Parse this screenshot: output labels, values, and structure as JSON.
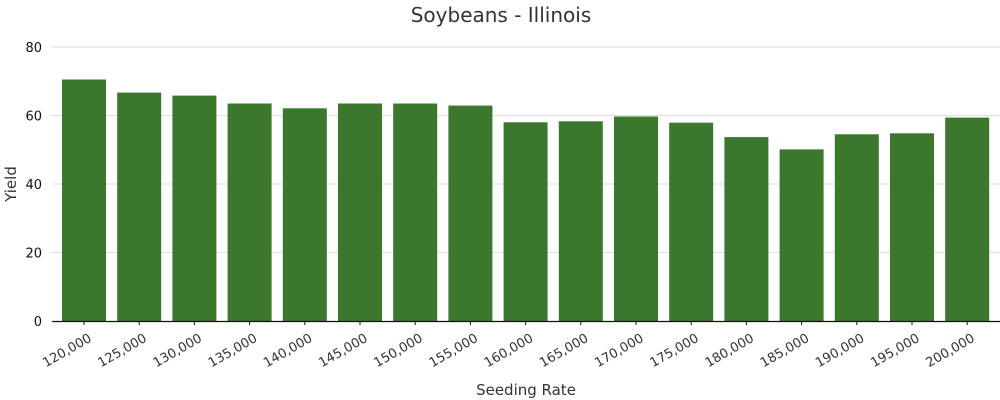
{
  "chart_data": {
    "type": "bar",
    "title": "Soybeans - Illinois",
    "xlabel": "Seeding Rate",
    "ylabel": "Yield",
    "ylim": [
      0,
      80
    ],
    "yticks": [
      "0",
      "20",
      "40",
      "60",
      "80"
    ],
    "grid": true,
    "bar_color": "#3b782d",
    "categories": [
      "120,000",
      "125,000",
      "130,000",
      "135,000",
      "140,000",
      "145,000",
      "150,000",
      "155,000",
      "160,000",
      "165,000",
      "170,000",
      "175,000",
      "180,000",
      "185,000",
      "190,000",
      "195,000",
      "200,000"
    ],
    "values": [
      70.5,
      66.7,
      65.8,
      63.5,
      62.1,
      63.5,
      63.5,
      62.9,
      58.0,
      58.3,
      59.7,
      57.9,
      53.7,
      50.1,
      54.5,
      54.8,
      59.4
    ]
  }
}
